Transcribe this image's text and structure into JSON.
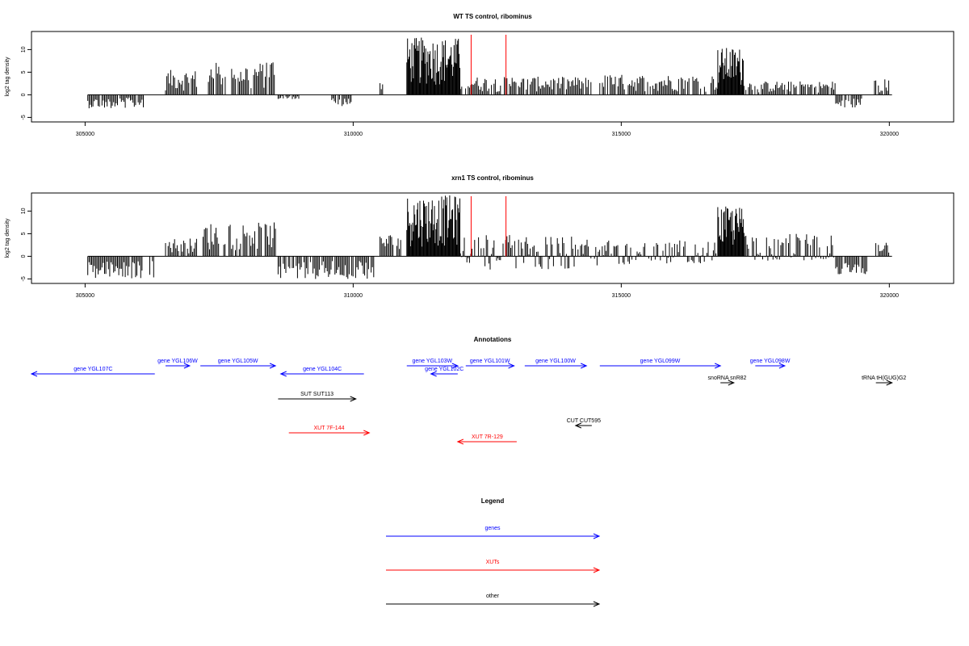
{
  "chart_data": [
    {
      "type": "bar",
      "title": "WT TS control, ribominus",
      "xlabel": "",
      "ylabel": "log2 tag density",
      "xlim": [
        304000,
        321200
      ],
      "ylim": [
        -6,
        14
      ],
      "xticks": [
        305000,
        310000,
        315000,
        320000
      ],
      "yticks": [
        -5,
        0,
        5,
        10
      ],
      "markers": [
        312200,
        312850
      ],
      "marker_color": "#ff0000",
      "bar_color": "#000000",
      "segments": [
        {
          "x0": 305050,
          "x1": 306100,
          "lo": -3,
          "hi": 0
        },
        {
          "x0": 306500,
          "x1": 307100,
          "lo": 0,
          "hi": 5.5
        },
        {
          "x0": 307300,
          "x1": 308550,
          "lo": 0,
          "hi": 7.2
        },
        {
          "x0": 308600,
          "x1": 309000,
          "lo": -1,
          "hi": 0
        },
        {
          "x0": 309600,
          "x1": 310000,
          "lo": -3,
          "hi": 0
        },
        {
          "x0": 310500,
          "x1": 310550,
          "lo": 0,
          "hi": 3
        },
        {
          "x0": 311000,
          "x1": 312000,
          "lo": 0,
          "hi": 12.7
        },
        {
          "x0": 312000,
          "x1": 314450,
          "lo": 0,
          "hi": 4
        },
        {
          "x0": 314600,
          "x1": 316800,
          "lo": 0,
          "hi": 4.5
        },
        {
          "x0": 316800,
          "x1": 317300,
          "lo": 0,
          "hi": 10.5
        },
        {
          "x0": 317300,
          "x1": 319000,
          "lo": 0,
          "hi": 3
        },
        {
          "x0": 319000,
          "x1": 319500,
          "lo": -3,
          "hi": 0
        },
        {
          "x0": 319700,
          "x1": 320000,
          "lo": 0,
          "hi": 3.5
        }
      ]
    },
    {
      "type": "bar",
      "title": "xrn1 TS control, ribominus",
      "xlabel": "",
      "ylabel": "log2 tag density",
      "xlim": [
        304000,
        321200
      ],
      "ylim": [
        -6,
        14
      ],
      "xticks": [
        305000,
        310000,
        315000,
        320000
      ],
      "yticks": [
        -5,
        0,
        5,
        10
      ],
      "markers": [
        312200,
        312850
      ],
      "marker_color": "#ff0000",
      "bar_color": "#000000",
      "segments": [
        {
          "x0": 305050,
          "x1": 306300,
          "lo": -5,
          "hi": 0
        },
        {
          "x0": 306500,
          "x1": 307100,
          "lo": 0,
          "hi": 4
        },
        {
          "x0": 307200,
          "x1": 308550,
          "lo": 0,
          "hi": 7.5
        },
        {
          "x0": 308600,
          "x1": 310400,
          "lo": -5,
          "hi": 0
        },
        {
          "x0": 310500,
          "x1": 310900,
          "lo": 0,
          "hi": 5
        },
        {
          "x0": 311000,
          "x1": 312000,
          "lo": 0,
          "hi": 13.5
        },
        {
          "x0": 312000,
          "x1": 314450,
          "lo": -3,
          "hi": 5
        },
        {
          "x0": 314500,
          "x1": 316800,
          "lo": -2,
          "hi": 3.5
        },
        {
          "x0": 316800,
          "x1": 317300,
          "lo": 0,
          "hi": 11
        },
        {
          "x0": 317300,
          "x1": 319000,
          "lo": -1,
          "hi": 5
        },
        {
          "x0": 319000,
          "x1": 319600,
          "lo": -4,
          "hi": 0
        },
        {
          "x0": 319700,
          "x1": 320000,
          "lo": 0,
          "hi": 3.5
        }
      ]
    }
  ],
  "annotations": {
    "title": "Annotations",
    "colors": {
      "genes": "#0000ff",
      "XUTs": "#ff0000",
      "other": "#000000"
    },
    "features": [
      {
        "label": "gene YGL107C",
        "start": 304000,
        "end": 306300,
        "strand": "-",
        "group": "genes",
        "row": 1
      },
      {
        "label": "gene YGL106W",
        "start": 306500,
        "end": 306950,
        "strand": "+",
        "group": "genes",
        "row": 0
      },
      {
        "label": "gene YGL105W",
        "start": 307150,
        "end": 308550,
        "strand": "+",
        "group": "genes",
        "row": 0
      },
      {
        "label": "gene YGL104C",
        "start": 308650,
        "end": 310200,
        "strand": "-",
        "group": "genes",
        "row": 1
      },
      {
        "label": "gene YGL103W",
        "start": 311000,
        "end": 311950,
        "strand": "+",
        "group": "genes",
        "row": 0
      },
      {
        "label": "gene YGL102C",
        "start": 311450,
        "end": 311950,
        "strand": "-",
        "group": "genes",
        "row": 1
      },
      {
        "label": "gene YGL101W",
        "start": 312100,
        "end": 313000,
        "strand": "+",
        "group": "genes",
        "row": 0
      },
      {
        "label": "gene YGL100W",
        "start": 313200,
        "end": 314350,
        "strand": "+",
        "group": "genes",
        "row": 0
      },
      {
        "label": "gene YGL099W",
        "start": 314600,
        "end": 316850,
        "strand": "+",
        "group": "genes",
        "row": 0
      },
      {
        "label": "gene YGL098W",
        "start": 317500,
        "end": 318050,
        "strand": "+",
        "group": "genes",
        "row": 0
      },
      {
        "label": "snoRNA snR82",
        "start": 316850,
        "end": 317100,
        "strand": "+",
        "group": "other",
        "row": 2
      },
      {
        "label": "tRNA tH(GUG)G2",
        "start": 319850,
        "end": 319950,
        "strand": "+",
        "group": "other",
        "row": 2
      },
      {
        "label": "SUT SUT113",
        "start": 308600,
        "end": 310050,
        "strand": "+",
        "group": "other",
        "row": 3
      },
      {
        "label": "CUT CUT595",
        "start": 314250,
        "end": 314350,
        "strand": "-",
        "group": "other",
        "row": 4
      },
      {
        "label": "XUT 7F-144",
        "start": 308800,
        "end": 310300,
        "strand": "+",
        "group": "XUTs",
        "row": 5
      },
      {
        "label": "XUT 7R-129",
        "start": 311950,
        "end": 313050,
        "strand": "-",
        "group": "XUTs",
        "row": 6
      }
    ]
  },
  "legend": {
    "title": "Legend",
    "items": [
      {
        "label": "genes",
        "color": "#0000ff"
      },
      {
        "label": "XUTs",
        "color": "#ff0000"
      },
      {
        "label": "other",
        "color": "#000000"
      }
    ]
  }
}
